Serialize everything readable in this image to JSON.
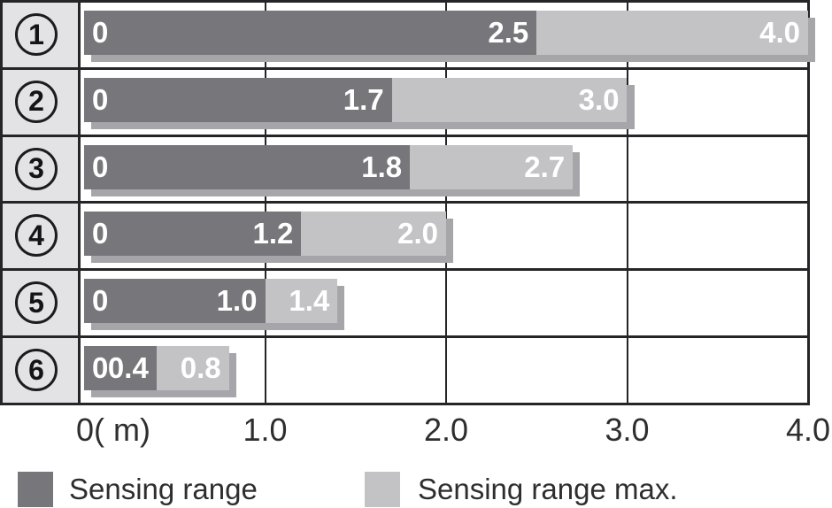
{
  "chart_data": {
    "type": "bar",
    "orientation": "horizontal",
    "categories": [
      "1",
      "2",
      "3",
      "4",
      "5",
      "6"
    ],
    "series": [
      {
        "name": "Sensing range",
        "values": [
          2.5,
          1.7,
          1.8,
          1.2,
          1.0,
          0.4
        ]
      },
      {
        "name": "Sensing range max.",
        "values": [
          4.0,
          3.0,
          2.7,
          2.0,
          1.4,
          0.8
        ]
      }
    ],
    "rows": [
      {
        "num": "1",
        "start_label": "0",
        "range": 2.5,
        "range_label": "2.5",
        "max": 4.0,
        "max_label": "4.0"
      },
      {
        "num": "2",
        "start_label": "0",
        "range": 1.7,
        "range_label": "1.7",
        "max": 3.0,
        "max_label": "3.0"
      },
      {
        "num": "3",
        "start_label": "0",
        "range": 1.8,
        "range_label": "1.8",
        "max": 2.7,
        "max_label": "2.7"
      },
      {
        "num": "4",
        "start_label": "0",
        "range": 1.2,
        "range_label": "1.2",
        "max": 2.0,
        "max_label": "2.0"
      },
      {
        "num": "5",
        "start_label": "0",
        "range": 1.0,
        "range_label": "1.0",
        "max": 1.4,
        "max_label": "1.4"
      },
      {
        "num": "6",
        "start_label": "0",
        "range": 0.4,
        "range_label": "0.4",
        "max": 0.8,
        "max_label": "0.8"
      }
    ],
    "x_ticks": [
      {
        "value": 0,
        "label": "0( m)"
      },
      {
        "value": 1,
        "label": "1.0"
      },
      {
        "value": 2,
        "label": "2.0"
      },
      {
        "value": 3,
        "label": "3.0"
      },
      {
        "value": 4,
        "label": "4.0"
      }
    ],
    "xlim": [
      0,
      4.0
    ],
    "grid": true,
    "title": "",
    "legend": [
      {
        "label": "Sensing range",
        "color": "#77777b"
      },
      {
        "label": "Sensing range max.",
        "color": "#c3c3c5"
      }
    ],
    "colors": {
      "sensing_range": "#77777b",
      "sensing_range_max": "#c3c3c5",
      "bar_shadow": "#a6a6aa",
      "row_label_bg": "#e3e3e5",
      "grid_line": "#252528",
      "bar_text": "#ffffff",
      "axis_text": "#2e2e30",
      "background": "#ffffff"
    }
  }
}
